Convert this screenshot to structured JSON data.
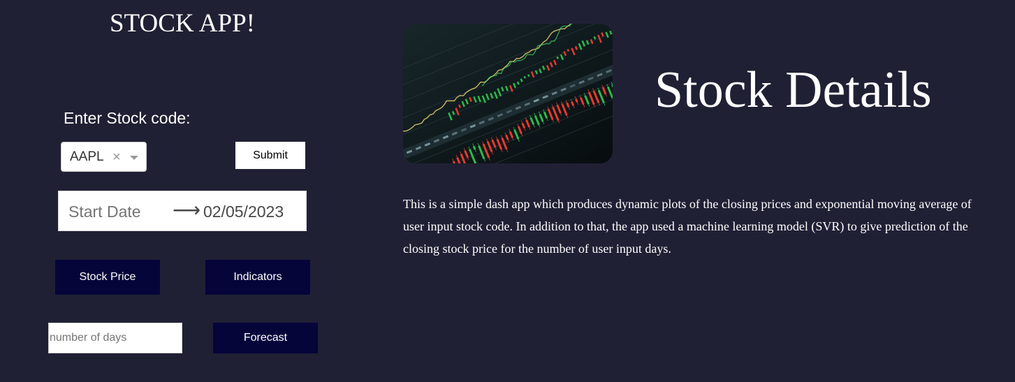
{
  "sidebar": {
    "title": "STOCK APP!",
    "stock_code_label": "Enter Stock code:",
    "stock_dropdown": {
      "value": "AAPL",
      "clear_symbol": "×"
    },
    "submit_label": "Submit",
    "date_range": {
      "start_placeholder": "Start Date",
      "arrow_symbol": "⟶",
      "end_value": "02/05/2023"
    },
    "stock_price_label": "Stock Price",
    "indicators_label": "Indicators",
    "days_input_placeholder": "number of days",
    "forecast_label": "Forecast"
  },
  "header": {
    "image_icon": "stock-chart-image",
    "heading": "Stock Details"
  },
  "main": {
    "description": "This is a simple dash app which produces dynamic plots of the closing prices and exponential moving average of user input stock code. In addition to that, the app used a machine learning model (SVR) to give prediction of the closing stock price for the number of user input days."
  },
  "colors": {
    "background": "#202035",
    "dark_button": "#05053a",
    "candle_up": "#2fb84a",
    "candle_down": "#e23b2e"
  }
}
